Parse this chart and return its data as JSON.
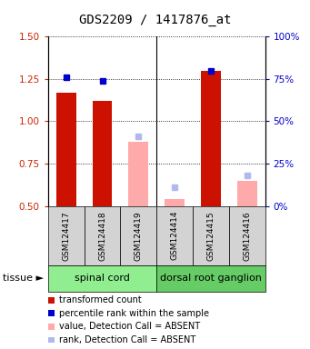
{
  "title": "GDS2209 / 1417876_at",
  "samples": [
    "GSM124417",
    "GSM124418",
    "GSM124419",
    "GSM124414",
    "GSM124415",
    "GSM124416"
  ],
  "tissue_groups": [
    {
      "label": "spinal cord",
      "samples": [
        0,
        1,
        2
      ],
      "color": "#90ee90"
    },
    {
      "label": "dorsal root ganglion",
      "samples": [
        3,
        4,
        5
      ],
      "color": "#66cc66"
    }
  ],
  "red_bars": [
    1.17,
    1.12,
    null,
    null,
    1.3,
    null
  ],
  "blue_markers": [
    1.26,
    1.24,
    null,
    null,
    1.3,
    null
  ],
  "pink_bars": [
    null,
    null,
    0.88,
    0.54,
    null,
    0.65
  ],
  "lavender_markers": [
    null,
    null,
    0.91,
    0.61,
    null,
    0.68
  ],
  "ylim": [
    0.5,
    1.5
  ],
  "yticks_left": [
    0.5,
    0.75,
    1.0,
    1.25,
    1.5
  ],
  "yticks_right_vals": [
    0,
    25,
    50,
    75,
    100
  ],
  "left_tick_color": "#cc2200",
  "right_tick_color": "#0000cc",
  "bar_width": 0.55,
  "red_color": "#cc1100",
  "blue_color": "#0000cc",
  "pink_color": "#ffaaaa",
  "lavender_color": "#b0b8ee",
  "bg_color": "#ffffff",
  "title_fontsize": 10,
  "tick_fontsize": 7.5,
  "label_fontsize": 6.5,
  "legend_fontsize": 7,
  "tissue_fontsize": 8
}
